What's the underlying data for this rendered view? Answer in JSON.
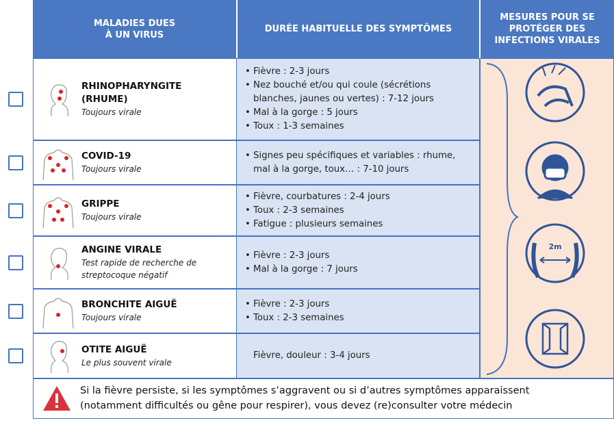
{
  "header": {
    "diseases": [
      "MALADIES DUES",
      "À UN VIRUS"
    ],
    "duration": "DURÉE HABITUELLE DES SYMPTÔMES",
    "measures": [
      "MESURES POUR SE",
      "PROTÉGER DES",
      "INFECTIONS VIRALES"
    ]
  },
  "rows": [
    {
      "name": "RHINOPHARYNGITE (RHUME)",
      "note": "Toujours virale",
      "symptoms": [
        "Fièvre : 2-3 jours",
        "Nez bouché et/ou qui coule (sécrétions blanches, jaunes ou vertes) : 7-12 jours",
        "Mal à la gorge : 5 jours",
        "Toux : 1-3 semaines"
      ]
    },
    {
      "name": "COVID-19",
      "note": "Toujours virale",
      "symptoms": [
        "Signes peu spécifiques et variables : rhume, mal à la gorge, toux… : 7-10 jours"
      ]
    },
    {
      "name": "GRIPPE",
      "note": "Toujours virale",
      "symptoms": [
        "Fièvre, courbatures : 2-4 jours",
        "Toux : 2-3 semaines",
        "Fatigue : plusieurs semaines"
      ]
    },
    {
      "name": "ANGINE VIRALE",
      "note": "Test rapide de recherche de streptocoque négatif",
      "symptoms": [
        "Fièvre : 2-3 jours",
        "Mal à la gorge : 7 jours"
      ]
    },
    {
      "name": "BRONCHITE AIGUË",
      "note": "Toujours virale",
      "symptoms": [
        "Fièvre : 2-3 jours",
        "Toux : 2-3 semaines"
      ]
    },
    {
      "name": "OTITE AIGUË",
      "note": "Le plus souvent virale",
      "plain": "Fièvre, douleur : 3-4 jours"
    }
  ],
  "footer": {
    "lines": [
      "Si la fièvre persiste, si les symptômes s’aggravent ou si d’autres symptômes apparaissent",
      "(notamment difficultés ou gêne pour respirer), vous devez (re)consulter votre médecin"
    ]
  },
  "measures_icons": {
    "distance": "2m"
  }
}
